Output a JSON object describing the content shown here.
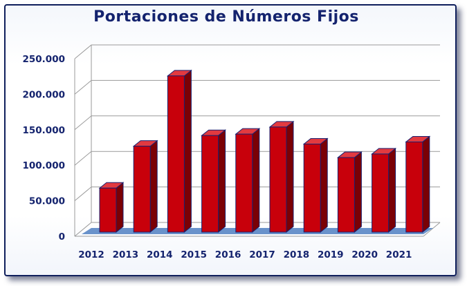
{
  "chart_data": {
    "type": "bar",
    "title": "Portaciones de Números Fijos",
    "categories": [
      "2012",
      "2013",
      "2014",
      "2015",
      "2016",
      "2017",
      "2018",
      "2019",
      "2020",
      "2021"
    ],
    "values": [
      62000,
      121000,
      220000,
      136000,
      138000,
      148000,
      124000,
      105000,
      110000,
      127000
    ],
    "yticks": [
      "0",
      "50.000",
      "100.000",
      "150.000",
      "200.000",
      "250.000"
    ],
    "ylim": [
      0,
      250000
    ],
    "xlabel": "",
    "ylabel": "",
    "grid": true,
    "style": "3d-bar",
    "colors": {
      "bar_front": "#c8000b",
      "bar_side": "#7a0005",
      "bar_top": "#e23a40",
      "bar_outline": "#1a2170",
      "floor": "#4f7fc2",
      "text": "#14236e"
    }
  }
}
